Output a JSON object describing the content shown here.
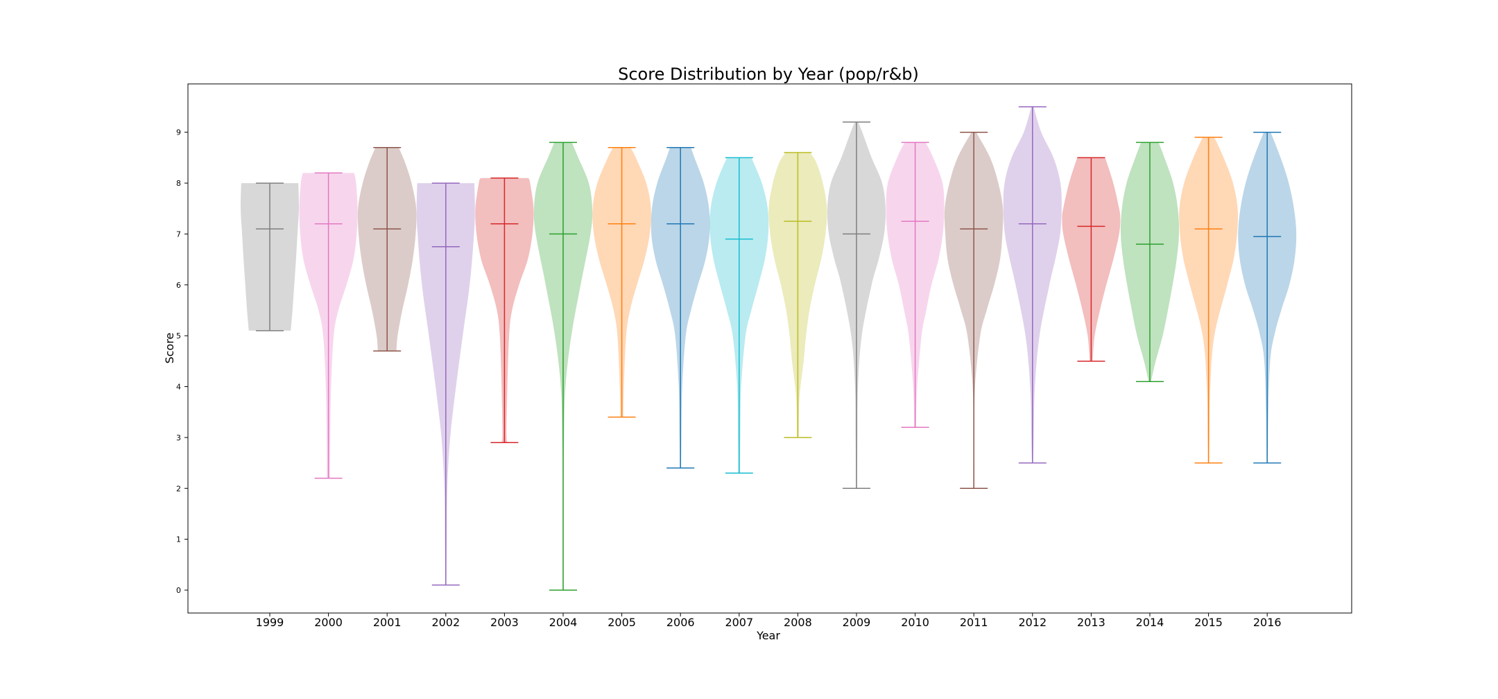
{
  "chart_data": {
    "type": "violin",
    "title": "Score Distribution by Year (pop/r&b)",
    "xlabel": "Year",
    "ylabel": "Score",
    "ylim": [
      -0.45,
      9.95
    ],
    "yticks": [
      "0",
      "1",
      "2",
      "3",
      "4",
      "5",
      "6",
      "7",
      "8",
      "9"
    ],
    "grid": false,
    "show_medians": true,
    "show_extrema": true,
    "categories": [
      "1999",
      "2000",
      "2001",
      "2002",
      "2003",
      "2004",
      "2005",
      "2006",
      "2007",
      "2008",
      "2009",
      "2010",
      "2011",
      "2012",
      "2013",
      "2014",
      "2015",
      "2016"
    ],
    "colors": [
      "#7f7f7f",
      "#e377c2",
      "#8c564b",
      "#9467bd",
      "#d62728",
      "#2ca02c",
      "#ff7f0e",
      "#1f77b4",
      "#17becf",
      "#bcbd22",
      "#7f7f7f",
      "#e377c2",
      "#8c564b",
      "#9467bd",
      "#d62728",
      "#2ca02c",
      "#ff7f0e",
      "#1f77b4"
    ],
    "violins": [
      {
        "min": 5.1,
        "median": 7.1,
        "max": 8.0,
        "profile": [
          [
            5.1,
            0.72
          ],
          [
            5.5,
            0.78
          ],
          [
            6.0,
            0.84
          ],
          [
            6.5,
            0.9
          ],
          [
            7.0,
            0.95
          ],
          [
            7.5,
            1.0
          ],
          [
            8.0,
            0.98
          ]
        ]
      },
      {
        "min": 2.2,
        "median": 7.2,
        "max": 8.2,
        "profile": [
          [
            2.2,
            0.05
          ],
          [
            3.0,
            0.06
          ],
          [
            4.0,
            0.09
          ],
          [
            5.0,
            0.18
          ],
          [
            5.5,
            0.34
          ],
          [
            6.0,
            0.62
          ],
          [
            6.5,
            0.86
          ],
          [
            7.0,
            0.97
          ],
          [
            7.5,
            1.0
          ],
          [
            8.0,
            0.95
          ],
          [
            8.2,
            0.88
          ]
        ]
      },
      {
        "min": 4.7,
        "median": 7.1,
        "max": 8.7,
        "profile": [
          [
            4.7,
            0.32
          ],
          [
            5.0,
            0.36
          ],
          [
            5.5,
            0.52
          ],
          [
            6.0,
            0.72
          ],
          [
            6.5,
            0.88
          ],
          [
            7.0,
            0.98
          ],
          [
            7.5,
            1.0
          ],
          [
            8.0,
            0.84
          ],
          [
            8.4,
            0.62
          ],
          [
            8.7,
            0.4
          ]
        ]
      },
      {
        "min": 0.1,
        "median": 6.75,
        "max": 8.0,
        "profile": [
          [
            0.1,
            0.02
          ],
          [
            1.0,
            0.03
          ],
          [
            2.0,
            0.05
          ],
          [
            3.0,
            0.15
          ],
          [
            4.0,
            0.35
          ],
          [
            5.0,
            0.58
          ],
          [
            6.0,
            0.82
          ],
          [
            7.0,
            0.97
          ],
          [
            7.5,
            1.0
          ],
          [
            8.0,
            0.98
          ]
        ]
      },
      {
        "min": 2.9,
        "median": 7.2,
        "max": 8.1,
        "profile": [
          [
            2.9,
            0.1
          ],
          [
            3.1,
            0.07
          ],
          [
            4.0,
            0.1
          ],
          [
            5.0,
            0.16
          ],
          [
            5.5,
            0.26
          ],
          [
            6.0,
            0.5
          ],
          [
            6.5,
            0.8
          ],
          [
            7.0,
            0.96
          ],
          [
            7.5,
            1.0
          ],
          [
            8.0,
            0.88
          ],
          [
            8.1,
            0.82
          ]
        ]
      },
      {
        "min": 0.0,
        "median": 7.0,
        "max": 8.8,
        "profile": [
          [
            0.0,
            0.02
          ],
          [
            1.0,
            0.02
          ],
          [
            2.0,
            0.02
          ],
          [
            3.0,
            0.03
          ],
          [
            4.0,
            0.08
          ],
          [
            5.0,
            0.28
          ],
          [
            6.0,
            0.6
          ],
          [
            7.0,
            0.94
          ],
          [
            7.5,
            1.0
          ],
          [
            8.0,
            0.88
          ],
          [
            8.5,
            0.52
          ],
          [
            8.8,
            0.3
          ]
        ]
      },
      {
        "min": 3.4,
        "median": 7.2,
        "max": 8.7,
        "profile": [
          [
            3.4,
            0.05
          ],
          [
            4.0,
            0.07
          ],
          [
            5.0,
            0.15
          ],
          [
            5.5,
            0.28
          ],
          [
            6.0,
            0.52
          ],
          [
            6.5,
            0.78
          ],
          [
            7.0,
            0.96
          ],
          [
            7.5,
            1.0
          ],
          [
            8.0,
            0.84
          ],
          [
            8.5,
            0.48
          ],
          [
            8.7,
            0.3
          ]
        ]
      },
      {
        "min": 2.4,
        "median": 7.2,
        "max": 8.7,
        "profile": [
          [
            2.4,
            0.02
          ],
          [
            3.0,
            0.03
          ],
          [
            4.0,
            0.06
          ],
          [
            5.0,
            0.18
          ],
          [
            5.5,
            0.36
          ],
          [
            6.0,
            0.6
          ],
          [
            6.5,
            0.86
          ],
          [
            7.0,
            1.0
          ],
          [
            7.5,
            0.98
          ],
          [
            8.0,
            0.8
          ],
          [
            8.5,
            0.48
          ],
          [
            8.7,
            0.36
          ]
        ]
      },
      {
        "min": 2.3,
        "median": 6.9,
        "max": 8.5,
        "profile": [
          [
            2.3,
            0.03
          ],
          [
            3.0,
            0.04
          ],
          [
            4.0,
            0.07
          ],
          [
            5.0,
            0.22
          ],
          [
            5.5,
            0.42
          ],
          [
            6.0,
            0.66
          ],
          [
            6.5,
            0.88
          ],
          [
            7.0,
            1.0
          ],
          [
            7.5,
            0.98
          ],
          [
            8.0,
            0.78
          ],
          [
            8.5,
            0.42
          ]
        ]
      },
      {
        "min": 3.0,
        "median": 7.25,
        "max": 8.6,
        "profile": [
          [
            3.0,
            0.03
          ],
          [
            3.8,
            0.06
          ],
          [
            4.5,
            0.2
          ],
          [
            5.0,
            0.28
          ],
          [
            5.5,
            0.4
          ],
          [
            6.0,
            0.58
          ],
          [
            6.5,
            0.8
          ],
          [
            7.0,
            0.95
          ],
          [
            7.5,
            1.0
          ],
          [
            8.0,
            0.86
          ],
          [
            8.4,
            0.64
          ],
          [
            8.6,
            0.42
          ]
        ]
      },
      {
        "min": 2.0,
        "median": 7.0,
        "max": 9.2,
        "profile": [
          [
            2.0,
            0.02
          ],
          [
            3.0,
            0.03
          ],
          [
            4.0,
            0.05
          ],
          [
            5.0,
            0.18
          ],
          [
            6.0,
            0.52
          ],
          [
            6.5,
            0.76
          ],
          [
            7.0,
            0.95
          ],
          [
            7.5,
            1.0
          ],
          [
            8.0,
            0.88
          ],
          [
            8.5,
            0.52
          ],
          [
            9.0,
            0.2
          ],
          [
            9.2,
            0.06
          ]
        ]
      },
      {
        "min": 3.2,
        "median": 7.25,
        "max": 8.8,
        "profile": [
          [
            3.2,
            0.03
          ],
          [
            4.0,
            0.07
          ],
          [
            5.0,
            0.22
          ],
          [
            5.5,
            0.38
          ],
          [
            6.0,
            0.56
          ],
          [
            6.5,
            0.8
          ],
          [
            7.0,
            0.95
          ],
          [
            7.5,
            1.0
          ],
          [
            8.0,
            0.94
          ],
          [
            8.5,
            0.62
          ],
          [
            8.8,
            0.36
          ]
        ]
      },
      {
        "min": 2.0,
        "median": 7.1,
        "max": 9.0,
        "profile": [
          [
            2.0,
            0.02
          ],
          [
            3.0,
            0.02
          ],
          [
            4.0,
            0.04
          ],
          [
            5.0,
            0.22
          ],
          [
            5.5,
            0.44
          ],
          [
            6.0,
            0.7
          ],
          [
            6.5,
            0.9
          ],
          [
            7.0,
            0.98
          ],
          [
            7.5,
            1.0
          ],
          [
            8.0,
            0.84
          ],
          [
            8.5,
            0.56
          ],
          [
            9.0,
            0.08
          ]
        ]
      },
      {
        "min": 2.5,
        "median": 7.2,
        "max": 9.5,
        "profile": [
          [
            2.5,
            0.02
          ],
          [
            3.0,
            0.04
          ],
          [
            4.0,
            0.08
          ],
          [
            5.0,
            0.24
          ],
          [
            6.0,
            0.58
          ],
          [
            6.5,
            0.78
          ],
          [
            7.0,
            0.95
          ],
          [
            7.5,
            1.0
          ],
          [
            8.0,
            0.96
          ],
          [
            8.5,
            0.72
          ],
          [
            9.0,
            0.3
          ],
          [
            9.5,
            0.04
          ]
        ]
      },
      {
        "min": 4.5,
        "median": 7.15,
        "max": 8.5,
        "profile": [
          [
            4.5,
            0.05
          ],
          [
            5.0,
            0.12
          ],
          [
            5.5,
            0.3
          ],
          [
            6.0,
            0.52
          ],
          [
            6.5,
            0.76
          ],
          [
            7.0,
            0.96
          ],
          [
            7.3,
            1.0
          ],
          [
            7.5,
            0.96
          ],
          [
            8.0,
            0.76
          ],
          [
            8.5,
            0.48
          ]
        ]
      },
      {
        "min": 4.1,
        "median": 6.8,
        "max": 8.8,
        "profile": [
          [
            4.1,
            0.04
          ],
          [
            4.5,
            0.2
          ],
          [
            5.0,
            0.44
          ],
          [
            5.5,
            0.62
          ],
          [
            6.0,
            0.78
          ],
          [
            6.5,
            0.92
          ],
          [
            7.0,
            1.0
          ],
          [
            7.5,
            0.96
          ],
          [
            8.0,
            0.8
          ],
          [
            8.5,
            0.5
          ],
          [
            8.8,
            0.3
          ]
        ]
      },
      {
        "min": 2.5,
        "median": 7.1,
        "max": 8.9,
        "profile": [
          [
            2.5,
            0.02
          ],
          [
            3.0,
            0.03
          ],
          [
            4.0,
            0.06
          ],
          [
            5.0,
            0.2
          ],
          [
            6.0,
            0.64
          ],
          [
            6.5,
            0.86
          ],
          [
            7.0,
            0.98
          ],
          [
            7.5,
            1.0
          ],
          [
            8.0,
            0.84
          ],
          [
            8.5,
            0.52
          ],
          [
            8.9,
            0.2
          ]
        ]
      },
      {
        "min": 2.5,
        "median": 6.95,
        "max": 9.0,
        "profile": [
          [
            2.5,
            0.02
          ],
          [
            3.5,
            0.04
          ],
          [
            4.5,
            0.1
          ],
          [
            5.0,
            0.24
          ],
          [
            5.5,
            0.48
          ],
          [
            6.0,
            0.76
          ],
          [
            6.5,
            0.94
          ],
          [
            7.0,
            1.0
          ],
          [
            7.5,
            0.92
          ],
          [
            8.0,
            0.74
          ],
          [
            8.5,
            0.46
          ],
          [
            9.0,
            0.12
          ]
        ]
      }
    ]
  }
}
